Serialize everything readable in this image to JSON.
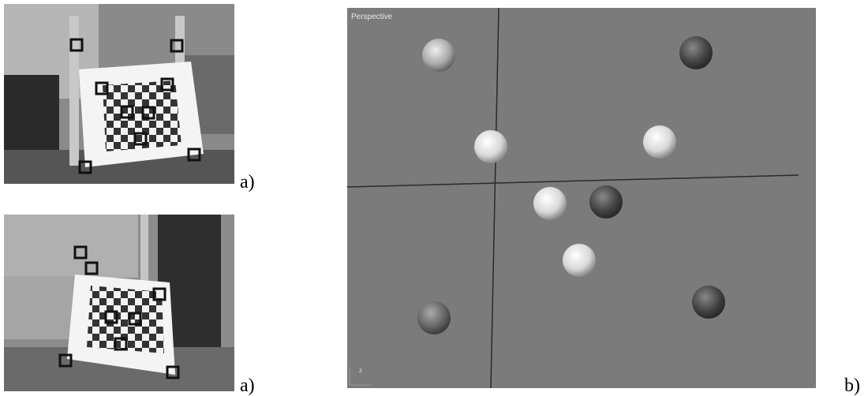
{
  "panels": [
    {
      "label": "a)"
    },
    {
      "label": "a)"
    },
    {
      "label": "b)",
      "viewport_label": "Perspective",
      "axis_label": "z"
    }
  ]
}
